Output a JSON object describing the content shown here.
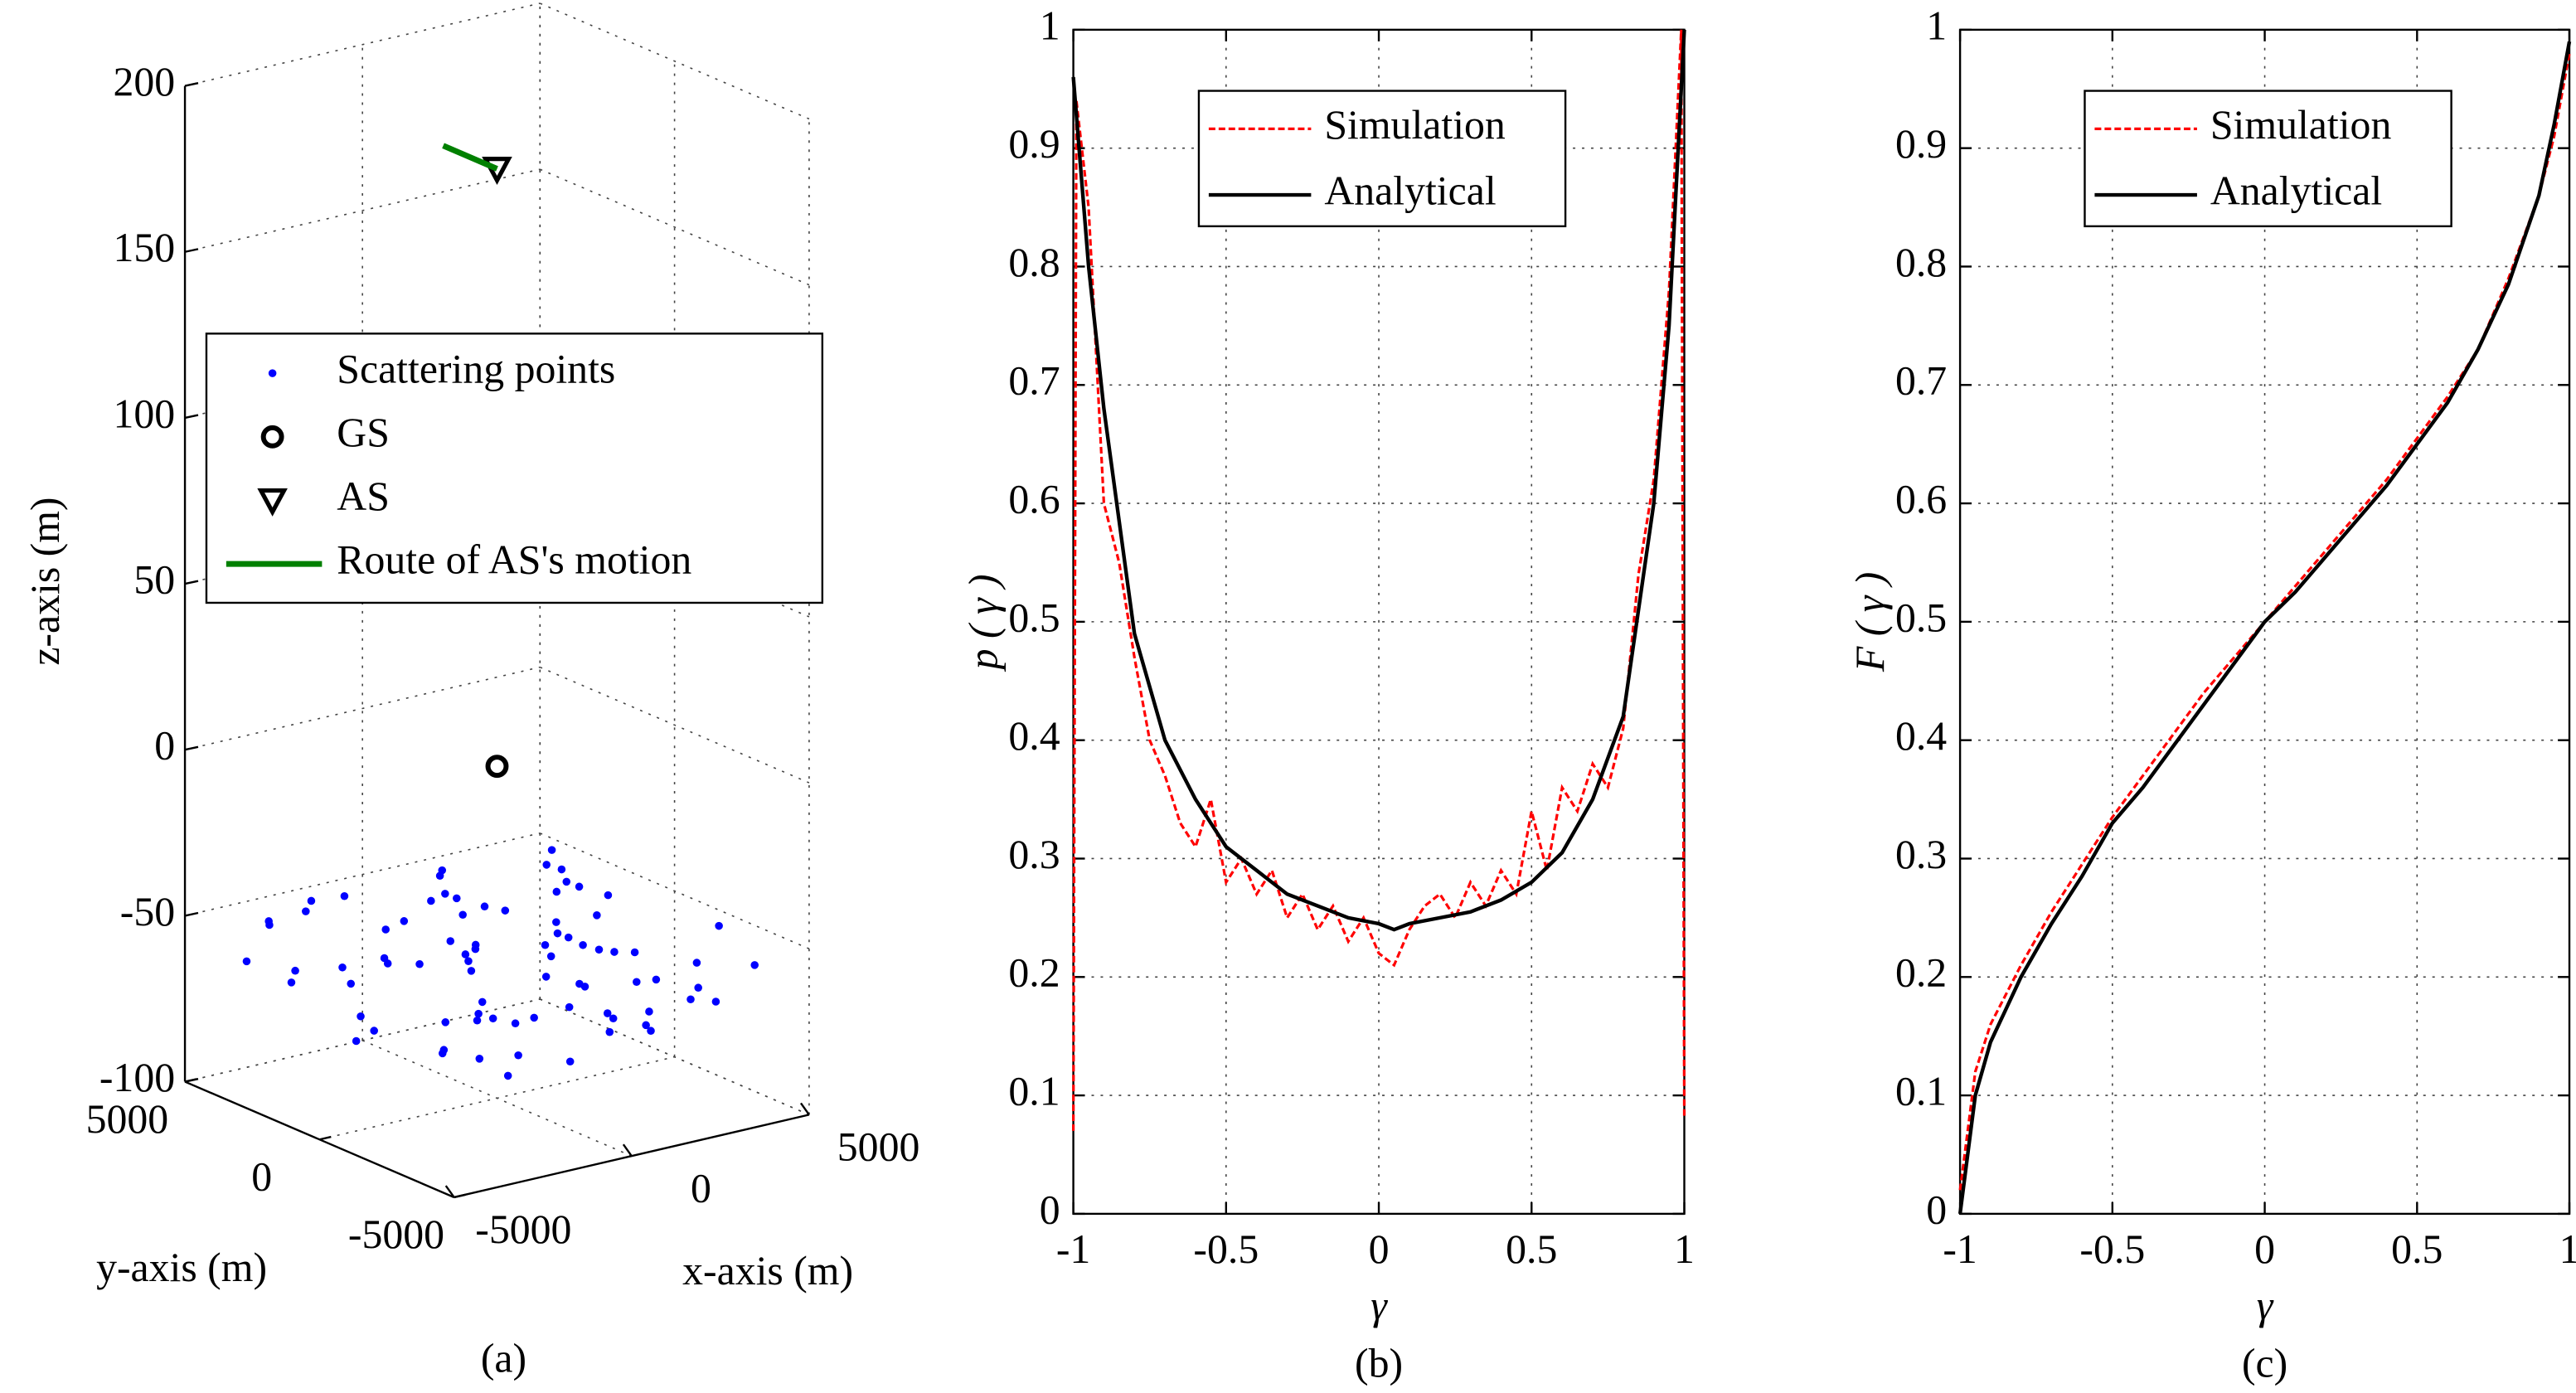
{
  "chart_data": [
    {
      "type": "scatter3d",
      "caption": "(a)",
      "xlabel": "x-axis (m)",
      "ylabel": "y-axis (m)",
      "zlabel": "z-axis (m)",
      "xlim": [
        -5000,
        5000
      ],
      "ylim": [
        -5000,
        5000
      ],
      "zlim": [
        -100,
        200
      ],
      "xticks": [
        -5000,
        0,
        5000
      ],
      "yticks": [
        -5000,
        0,
        5000
      ],
      "zticks": [
        -100,
        -50,
        0,
        50,
        100,
        150,
        200
      ],
      "grid": true,
      "legend": "center-left",
      "series": [
        {
          "name": "Scattering points",
          "marker": "dot",
          "color": "#0000ff",
          "x": [
            -4200,
            -3100,
            -2500,
            -1800,
            -900,
            -300,
            400,
            1200,
            2100,
            2900,
            3600,
            4300,
            -4600,
            -3700,
            -2800,
            -1500,
            -600,
            200,
            900,
            1700,
            2600,
            3300,
            4000,
            4700,
            -3900,
            -3300,
            -2100,
            -1200,
            -100,
            700,
            1500,
            2300,
            3100,
            3900,
            -4400,
            -2900,
            -1900,
            -700,
            500,
            1300,
            2500,
            3500,
            4500,
            -3500,
            -2400,
            -1300,
            -200,
            800,
            1900,
            2800,
            3700,
            -4800,
            -3000,
            -1600,
            0,
            1100,
            2200,
            3400,
            4200,
            -4000,
            -2200,
            -1000,
            300,
            1600,
            2700,
            3800,
            -3600,
            -2600,
            -1400,
            -500,
            600,
            1400,
            2400,
            3200,
            4100,
            -2000,
            -800,
            1000,
            2000,
            3000
          ],
          "y": [
            2100,
            -3400,
            4200,
            -1200,
            3000,
            -4500,
            1800,
            -2600,
            4700,
            -300,
            2500,
            -3900,
            -1500,
            3600,
            -4100,
            900,
            -2800,
            4400,
            -600,
            3200,
            -4700,
            1300,
            -2200,
            3800,
            600,
            -3700,
            2900,
            -4300,
            1600,
            -900,
            4100,
            -2500,
            300,
            -3100,
            3500,
            -1800,
            4600,
            -2300,
            2700,
            -4000,
            1100,
            -500,
            3900,
            -2700,
            1900,
            -4400,
            800,
            -1600,
            3300,
            -3500,
            2300,
            -1100,
            4500,
            -2900,
            1500,
            -4200,
            2600,
            -700,
            3700,
            -3300,
            4000,
            -2000,
            1200,
            -3800,
            500,
            2800,
            -4600,
            2000,
            -1300,
            3400,
            -2400,
            4300,
            -100,
            -3200,
            1700,
            -1900,
            2400,
            -3000,
            3100,
            -400
          ],
          "z": [
            -62,
            -55,
            -70,
            -48,
            -66,
            -58,
            -52,
            -74,
            -60,
            -45,
            -68,
            -57,
            -63,
            -50,
            -72,
            -59,
            -46,
            -65,
            -54,
            -77,
            -61,
            -49,
            -69,
            -56,
            -53,
            -67,
            -44,
            -71,
            -58,
            -62,
            -51,
            -75,
            -64,
            -47,
            -60,
            -73,
            -55,
            -66,
            -42,
            -69,
            -57,
            -63,
            -50,
            -59,
            -76,
            -54,
            -61,
            -48,
            -70,
            -65,
            -52,
            -67,
            -56,
            -73,
            -45,
            -62,
            -58,
            -71,
            -53,
            -64,
            -49,
            -68,
            -60,
            -55,
            -74,
            -57,
            -51,
            -66,
            -63,
            -70,
            -47,
            -59,
            -72,
            -56,
            -61,
            -65,
            -53,
            -68,
            -58,
            -62
          ]
        },
        {
          "name": "GS",
          "marker": "circle",
          "color": "#000000",
          "x": [
            0
          ],
          "y": [
            0
          ],
          "z": [
            0
          ]
        },
        {
          "name": "AS",
          "marker": "triangle-down",
          "color": "#000000",
          "x": [
            0
          ],
          "y": [
            0
          ],
          "z": [
            180
          ]
        },
        {
          "name": "Route of AS's motion",
          "marker": "line",
          "color": "#008000",
          "x": [
            0,
            0
          ],
          "y": [
            2000,
            0
          ],
          "z": [
            180,
            180
          ]
        }
      ]
    },
    {
      "type": "line",
      "caption": "(b)",
      "xlabel": "γ",
      "ylabel": "p ( γ )",
      "xlim": [
        -1,
        1
      ],
      "ylim": [
        0,
        1
      ],
      "xticks": [
        -1,
        -0.5,
        0,
        0.5,
        1
      ],
      "yticks": [
        0,
        0.1,
        0.2,
        0.3,
        0.4,
        0.5,
        0.6,
        0.7,
        0.8,
        0.9,
        1
      ],
      "grid": true,
      "legend": "top-center",
      "series": [
        {
          "name": "Simulation",
          "color": "#ff0000",
          "linestyle": "dashed",
          "x": [
            -1,
            -0.99,
            -0.95,
            -0.9,
            -0.85,
            -0.8,
            -0.75,
            -0.7,
            -0.65,
            -0.6,
            -0.55,
            -0.5,
            -0.45,
            -0.4,
            -0.35,
            -0.3,
            -0.25,
            -0.2,
            -0.15,
            -0.1,
            -0.05,
            0,
            0.05,
            0.1,
            0.15,
            0.2,
            0.25,
            0.3,
            0.35,
            0.4,
            0.45,
            0.5,
            0.55,
            0.6,
            0.65,
            0.7,
            0.75,
            0.8,
            0.85,
            0.9,
            0.95,
            0.99,
            1
          ],
          "values": [
            0.07,
            0.94,
            0.85,
            0.6,
            0.55,
            0.47,
            0.4,
            0.37,
            0.33,
            0.31,
            0.35,
            0.28,
            0.3,
            0.27,
            0.29,
            0.25,
            0.27,
            0.24,
            0.26,
            0.23,
            0.25,
            0.22,
            0.21,
            0.24,
            0.26,
            0.27,
            0.25,
            0.28,
            0.26,
            0.29,
            0.27,
            0.34,
            0.29,
            0.36,
            0.34,
            0.38,
            0.36,
            0.41,
            0.54,
            0.62,
            0.78,
            1,
            0.08
          ]
        },
        {
          "name": "Analytical",
          "color": "#000000",
          "linestyle": "solid",
          "x": [
            -1,
            -0.95,
            -0.9,
            -0.8,
            -0.7,
            -0.6,
            -0.5,
            -0.4,
            -0.3,
            -0.2,
            -0.1,
            0,
            0.05,
            0.1,
            0.2,
            0.3,
            0.4,
            0.5,
            0.6,
            0.7,
            0.8,
            0.9,
            0.95,
            1
          ],
          "values": [
            0.96,
            0.8,
            0.68,
            0.49,
            0.4,
            0.35,
            0.31,
            0.29,
            0.27,
            0.26,
            0.25,
            0.245,
            0.24,
            0.245,
            0.25,
            0.255,
            0.265,
            0.28,
            0.305,
            0.35,
            0.42,
            0.6,
            0.75,
            1
          ]
        }
      ]
    },
    {
      "type": "line",
      "caption": "(c)",
      "xlabel": "γ",
      "ylabel": "F ( γ )",
      "xlim": [
        -1,
        1
      ],
      "ylim": [
        0,
        1
      ],
      "xticks": [
        -1,
        -0.5,
        0,
        0.5,
        1
      ],
      "yticks": [
        0,
        0.1,
        0.2,
        0.3,
        0.4,
        0.5,
        0.6,
        0.7,
        0.8,
        0.9,
        1
      ],
      "grid": true,
      "legend": "top-center",
      "series": [
        {
          "name": "Simulation",
          "color": "#ff0000",
          "linestyle": "dashed",
          "x": [
            -1,
            -0.95,
            -0.9,
            -0.8,
            -0.7,
            -0.6,
            -0.5,
            -0.4,
            -0.3,
            -0.2,
            -0.1,
            0,
            0.1,
            0.2,
            0.3,
            0.4,
            0.5,
            0.6,
            0.7,
            0.8,
            0.9,
            0.95,
            1
          ],
          "values": [
            0.02,
            0.12,
            0.16,
            0.21,
            0.255,
            0.295,
            0.335,
            0.37,
            0.405,
            0.44,
            0.47,
            0.5,
            0.53,
            0.56,
            0.59,
            0.62,
            0.655,
            0.69,
            0.73,
            0.79,
            0.86,
            0.91,
            0.98
          ]
        },
        {
          "name": "Analytical",
          "color": "#000000",
          "linestyle": "solid",
          "x": [
            -1,
            -0.95,
            -0.9,
            -0.8,
            -0.7,
            -0.6,
            -0.5,
            -0.4,
            -0.3,
            -0.2,
            -0.1,
            0,
            0.1,
            0.2,
            0.3,
            0.4,
            0.5,
            0.6,
            0.7,
            0.8,
            0.9,
            0.95,
            1
          ],
          "values": [
            0,
            0.1,
            0.145,
            0.2,
            0.245,
            0.285,
            0.33,
            0.36,
            0.395,
            0.43,
            0.465,
            0.5,
            0.525,
            0.555,
            0.585,
            0.615,
            0.65,
            0.685,
            0.73,
            0.785,
            0.86,
            0.92,
            0.99
          ]
        }
      ]
    }
  ]
}
